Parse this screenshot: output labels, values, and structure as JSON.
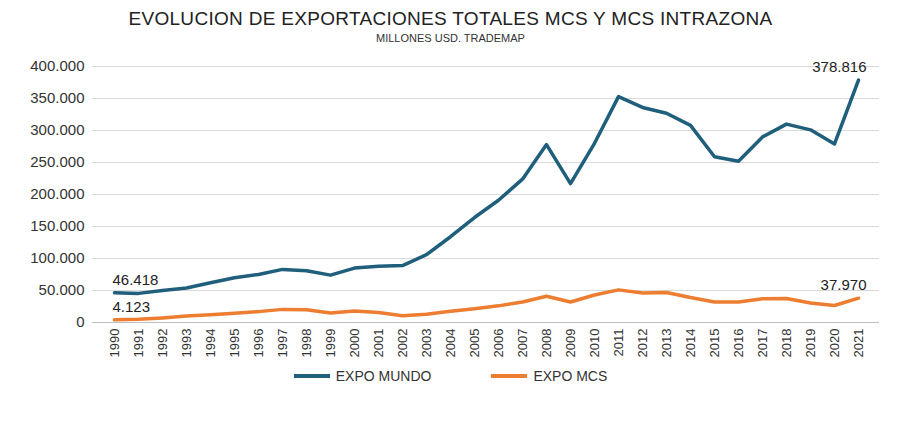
{
  "chart_data": {
    "type": "line",
    "title": "EVOLUCION DE EXPORTACIONES TOTALES MCS Y MCS INTRAZONA",
    "subtitle": "MILLONES USD. TRADEMAP",
    "categories": [
      "1990",
      "1991",
      "1992",
      "1993",
      "1994",
      "1995",
      "1996",
      "1997",
      "1998",
      "1999",
      "2000",
      "2001",
      "2002",
      "2003",
      "2004",
      "2005",
      "2006",
      "2007",
      "2008",
      "2009",
      "2010",
      "2011",
      "2012",
      "2013",
      "2014",
      "2015",
      "2016",
      "2017",
      "2018",
      "2019",
      "2020",
      "2021"
    ],
    "series": [
      {
        "name": "EXPO MUNDO",
        "color": "#1f5f7c",
        "values": [
          46418,
          45500,
          50000,
          54000,
          62000,
          70000,
          75000,
          83000,
          81000,
          74000,
          85000,
          88000,
          89000,
          106000,
          134000,
          164000,
          191000,
          224000,
          278000,
          217000,
          280000,
          353000,
          336000,
          327000,
          308000,
          259000,
          252000,
          290000,
          310000,
          301000,
          279000,
          378816
        ]
      },
      {
        "name": "EXPO MCS",
        "color": "#ed7d31",
        "values": [
          4123,
          5100,
          7200,
          10000,
          12000,
          14500,
          17000,
          20500,
          20000,
          15000,
          18000,
          15500,
          10500,
          13000,
          17500,
          21500,
          26000,
          32000,
          41000,
          32000,
          43000,
          51000,
          46000,
          47000,
          39000,
          32000,
          32000,
          37000,
          37500,
          30500,
          26500,
          37970
        ]
      }
    ],
    "annotations": [
      {
        "x": "1990",
        "y": 46418,
        "text": "46.418"
      },
      {
        "x": "1990",
        "y": 4123,
        "text": "4.123"
      },
      {
        "x": "2021",
        "y": 378816,
        "text": "378.816"
      },
      {
        "x": "2021",
        "y": 37970,
        "text": "37.970"
      }
    ],
    "ylim": [
      0,
      400000
    ],
    "yticks": [
      0,
      {
        "value": 50000,
        "label": "50.000"
      },
      {
        "value": 100000,
        "label": "100.000"
      },
      {
        "value": 150000,
        "label": "150.000"
      },
      {
        "value": 200000,
        "label": "200.000"
      },
      {
        "value": 250000,
        "label": "250.000"
      },
      {
        "value": 300000,
        "label": "300.000"
      },
      {
        "value": 350000,
        "label": "350.000"
      },
      {
        "value": 400000,
        "label": "400.000"
      }
    ],
    "grid": true,
    "legend": "bottom"
  }
}
